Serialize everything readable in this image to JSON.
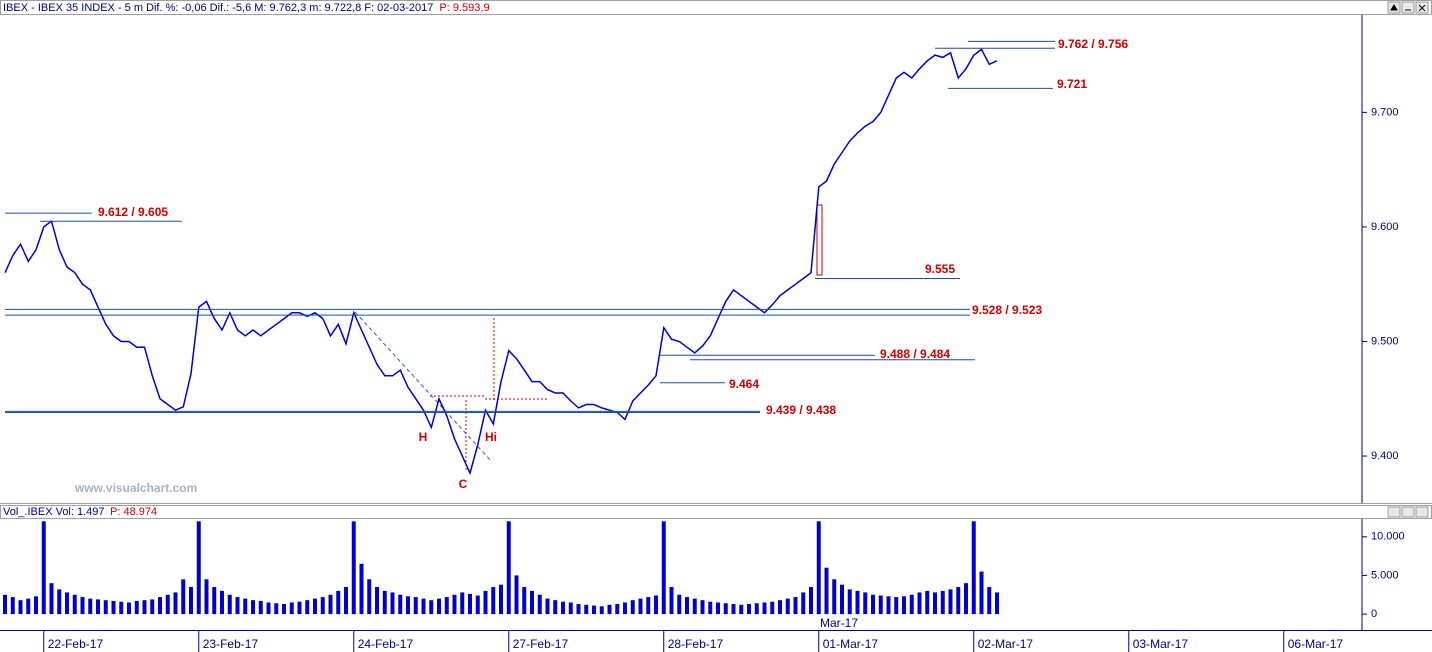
{
  "header": {
    "info": "IBEX - IBEX 35 INDEX - 5 m  Dif. %: -0,06  Dif.: -5,6  M: 9.762,3  m: 9.722,8  F: 02-03-2017",
    "price": "P: 9.593,9"
  },
  "watermark": "www.visualchart.com",
  "chart_data": [
    {
      "type": "line",
      "color": "#0000cc",
      "values": [
        9560,
        9575,
        9585,
        9570,
        9580,
        9600,
        9605,
        9580,
        9565,
        9560,
        9550,
        9545,
        9530,
        9515,
        9505,
        9500,
        9500,
        9495,
        9495,
        9470,
        9450,
        9445,
        9440,
        9443,
        9472,
        9530,
        9535,
        9520,
        9510,
        9525,
        9510,
        9505,
        9510,
        9505,
        9510,
        9515,
        9520,
        9525,
        9525,
        9522,
        9525,
        9520,
        9505,
        9515,
        9498,
        9525,
        9510,
        9495,
        9480,
        9470,
        9470,
        9475,
        9460,
        9450,
        9440,
        9425,
        9450,
        9435,
        9415,
        9400,
        9385,
        9410,
        9440,
        9428,
        9465,
        9492,
        9485,
        9475,
        9465,
        9465,
        9458,
        9455,
        9455,
        9448,
        9442,
        9445,
        9445,
        9442,
        9440,
        9438,
        9432,
        9448,
        9455,
        9462,
        9470,
        9512,
        9502,
        9500,
        9495,
        9490,
        9496,
        9505,
        9520,
        9535,
        9545,
        9540,
        9535,
        9530,
        9525,
        9532,
        9540,
        9545,
        9550,
        9555,
        9560,
        9635,
        9640,
        9655,
        9665,
        9675,
        9682,
        9688,
        9692,
        9700,
        9715,
        9730,
        9735,
        9730,
        9738,
        9745,
        9750,
        9748,
        9752,
        9730,
        9738,
        9750,
        9755,
        9742,
        9745
      ],
      "ylim": [
        9359,
        9785
      ],
      "yticks": [
        {
          "value": 9400,
          "label": "9.400"
        },
        {
          "value": 9500,
          "label": "9.500"
        },
        {
          "value": 9600,
          "label": "9.600"
        },
        {
          "value": 9700,
          "label": "9.700"
        }
      ],
      "annotations": [
        {
          "label": "9.762 / 9.756",
          "values": [
            9762,
            9756
          ]
        },
        {
          "label": "9.721",
          "values": [
            9721
          ]
        },
        {
          "label": "9.612 / 9.605",
          "values": [
            9612,
            9605
          ]
        },
        {
          "label": "9.555",
          "values": [
            9555
          ]
        },
        {
          "label": "9.528 / 9.523",
          "values": [
            9528,
            9523
          ]
        },
        {
          "label": "9.488 / 9.484",
          "values": [
            9488,
            9484
          ]
        },
        {
          "label": "9.464",
          "values": [
            9464
          ]
        },
        {
          "label": "9.439 / 9.438",
          "values": [
            9439,
            9438
          ]
        }
      ],
      "markers": [
        "H",
        "Hi",
        "C"
      ]
    },
    {
      "type": "bar",
      "color": "#0000cc",
      "title": "Vol_.IBEX Vol: 1.497",
      "subtitle": "P: 48.974",
      "values": [
        2500,
        2200,
        1800,
        2000,
        2300,
        12000,
        4000,
        3200,
        2800,
        2500,
        2200,
        2000,
        1900,
        1800,
        1700,
        1600,
        1500,
        1700,
        1800,
        1900,
        2200,
        2500,
        2800,
        4500,
        3500,
        12000,
        4500,
        3500,
        3000,
        2500,
        2200,
        2000,
        1800,
        1700,
        1500,
        1400,
        1300,
        1500,
        1600,
        1800,
        2000,
        2200,
        2500,
        3000,
        3500,
        12000,
        6500,
        4500,
        3500,
        3000,
        2800,
        2500,
        2300,
        2200,
        2000,
        1800,
        2000,
        2200,
        2500,
        2800,
        2600,
        2400,
        3000,
        3500,
        3800,
        12000,
        5000,
        3500,
        3000,
        2500,
        2000,
        1800,
        1600,
        1500,
        1300,
        1200,
        1100,
        1000,
        1200,
        1300,
        1500,
        1800,
        2000,
        2200,
        2400,
        12000,
        3500,
        2500,
        2200,
        2000,
        1800,
        1600,
        1500,
        1400,
        1300,
        1200,
        1300,
        1400,
        1500,
        1600,
        1800,
        2000,
        2200,
        2800,
        3500,
        12000,
        6000,
        4500,
        3800,
        3200,
        3000,
        2800,
        2500,
        2400,
        2300,
        2200,
        2300,
        2500,
        2800,
        3000,
        2800,
        3000,
        3200,
        3500,
        4000,
        12000,
        5500,
        3500,
        2800
      ],
      "ylim": [
        -1800,
        12300
      ],
      "yticks": [
        0,
        {
          "value": 5000,
          "label": "5.000"
        },
        {
          "value": 10000,
          "label": "10.000"
        }
      ],
      "x_labels": [
        "22-Feb-17",
        "23-Feb-17",
        "24-Feb-17",
        "27-Feb-17",
        "28-Feb-17",
        "01-Mar-17",
        "02-Mar-17",
        "03-Mar-17",
        "06-Mar-17"
      ],
      "x_note": "Mar-17"
    }
  ]
}
